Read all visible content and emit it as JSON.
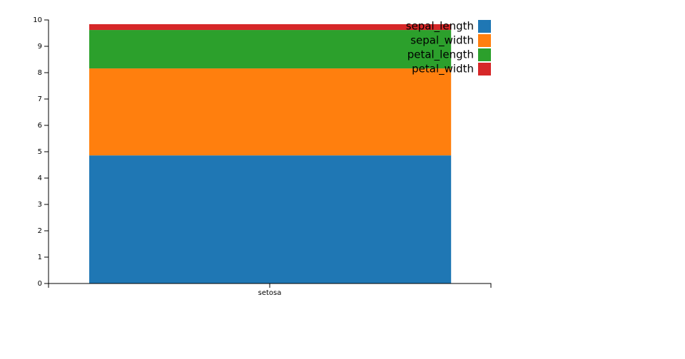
{
  "chart_data": {
    "type": "stacked_bar",
    "categories": [
      "setosa"
    ],
    "series": [
      {
        "name": "sepal_length",
        "color": "#1f77b4",
        "values": [
          4.86
        ]
      },
      {
        "name": "sepal_width",
        "color": "#ff7f0e",
        "values": [
          3.3
        ]
      },
      {
        "name": "petal_length",
        "color": "#2ca02c",
        "values": [
          1.46
        ]
      },
      {
        "name": "petal_width",
        "color": "#d62728",
        "values": [
          0.22
        ]
      }
    ],
    "ylim": [
      0,
      10
    ],
    "yticks": [
      0,
      1,
      2,
      3,
      4,
      5,
      6,
      7,
      8,
      9,
      10
    ],
    "legend": "top-right"
  }
}
